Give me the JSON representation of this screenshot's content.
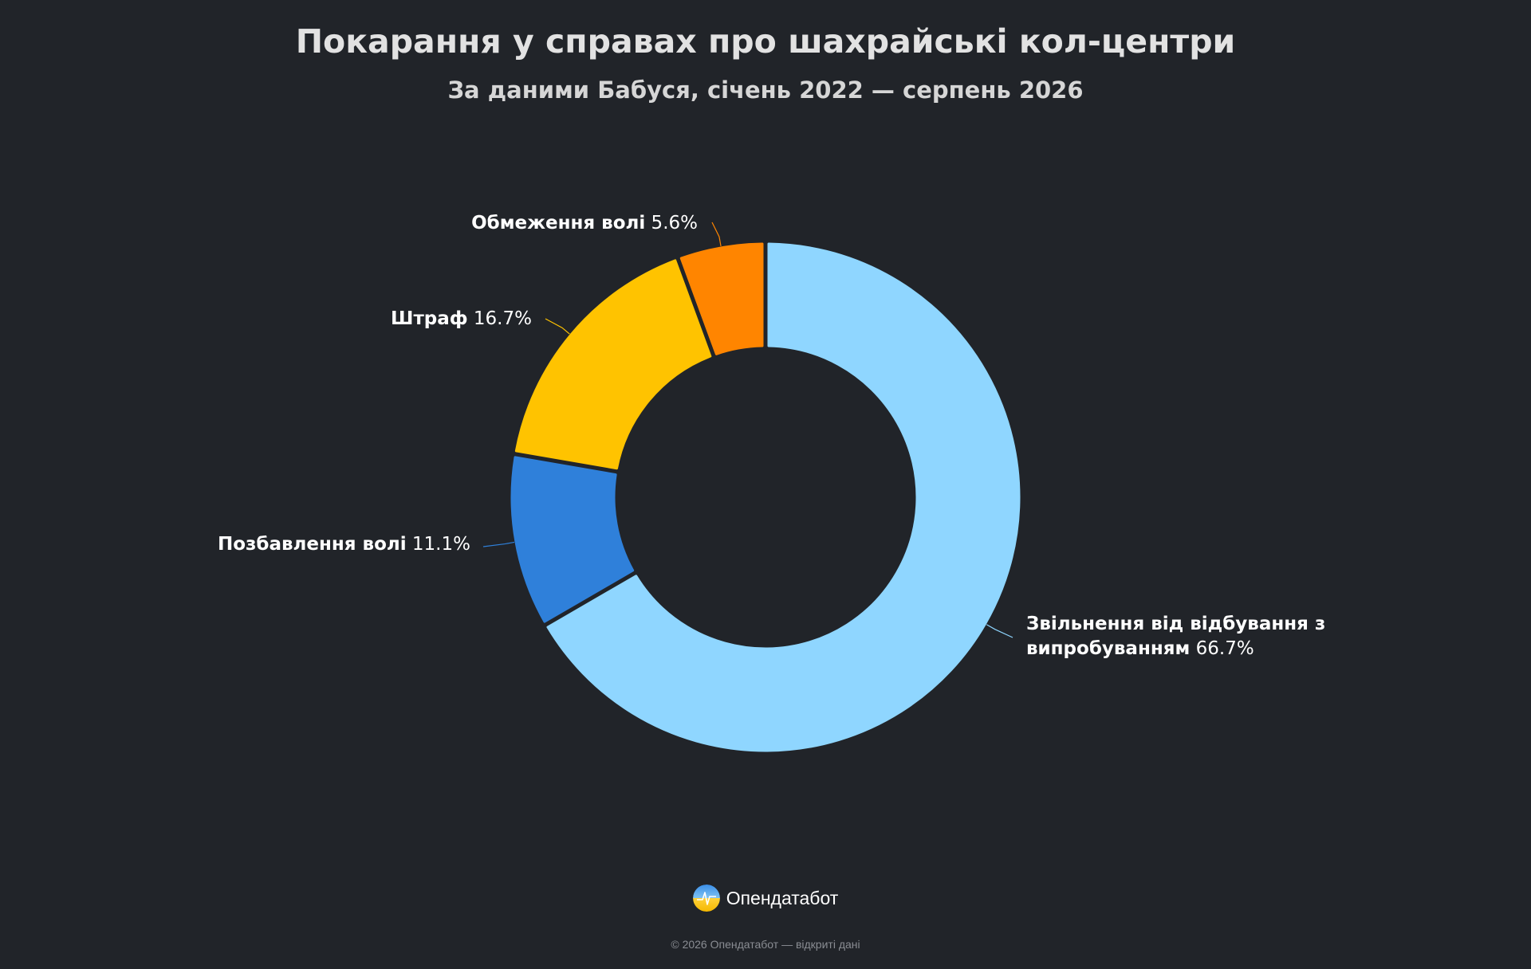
{
  "header": {
    "title": "Покарання у справах про шахрайські кол-центри",
    "subtitle": "За даними Бабуся, січень 2022 — серпень 2026"
  },
  "chart_data": {
    "type": "pie",
    "donut": true,
    "title": "Покарання у справах про шахрайські кол-центри",
    "subtitle": "За даними Бабуся, січень 2022 — серпень 2026",
    "slices": [
      {
        "label": "Звільнення від відбування з випробуванням",
        "value": 66.7,
        "pct_text": "66.7%",
        "color": "#8fd6ff"
      },
      {
        "label": "Позбавлення волі",
        "value": 11.1,
        "pct_text": "11.1%",
        "color": "#2f80da"
      },
      {
        "label": "Штраф",
        "value": 16.7,
        "pct_text": "16.7%",
        "color": "#ffc300"
      },
      {
        "label": "Обмеження волі",
        "value": 5.6,
        "pct_text": "5.6%",
        "color": "#ff8500"
      }
    ]
  },
  "footer": {
    "brand": "Опендатабот",
    "copyright": "© 2026 Опендатабот — відкриті дані"
  }
}
